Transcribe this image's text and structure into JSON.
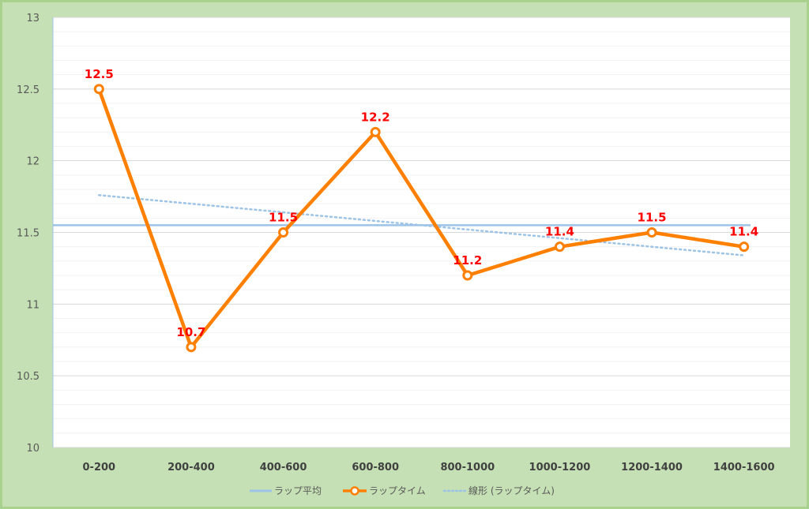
{
  "chart_data": {
    "type": "line",
    "categories": [
      "0-200",
      "200-400",
      "400-600",
      "600-800",
      "800-1000",
      "1000-1200",
      "1200-1400",
      "1400-1600"
    ],
    "series": [
      {
        "name": "ラップ平均",
        "values": [
          11.55,
          11.55,
          11.55,
          11.55,
          11.55,
          11.55,
          11.55,
          11.55
        ],
        "color": "#9dc3e6",
        "style": "solid"
      },
      {
        "name": "ラップタイム",
        "values": [
          12.5,
          10.7,
          11.5,
          12.2,
          11.2,
          11.4,
          11.5,
          11.4
        ],
        "color": "#ff8000",
        "style": "line-marker",
        "labels": [
          "12.5",
          "10.7",
          "11.5",
          "12.2",
          "11.2",
          "11.4",
          "11.5",
          "11.4"
        ]
      },
      {
        "name": "線形 (ラップタイム)",
        "values": [
          11.76,
          11.7,
          11.64,
          11.58,
          11.52,
          11.46,
          11.4,
          11.34
        ],
        "color": "#9dc3e6",
        "style": "dotted"
      }
    ],
    "ylim": [
      10,
      13
    ],
    "yticks": [
      "10",
      "10.5",
      "11",
      "11.5",
      "12",
      "12.5",
      "13"
    ],
    "title": "",
    "xlabel": "",
    "ylabel": "",
    "grid": true,
    "legend": "bottom",
    "colors": {
      "background": "#c5e0b4",
      "plot": "#ffffff",
      "label": "#ff0000"
    }
  }
}
